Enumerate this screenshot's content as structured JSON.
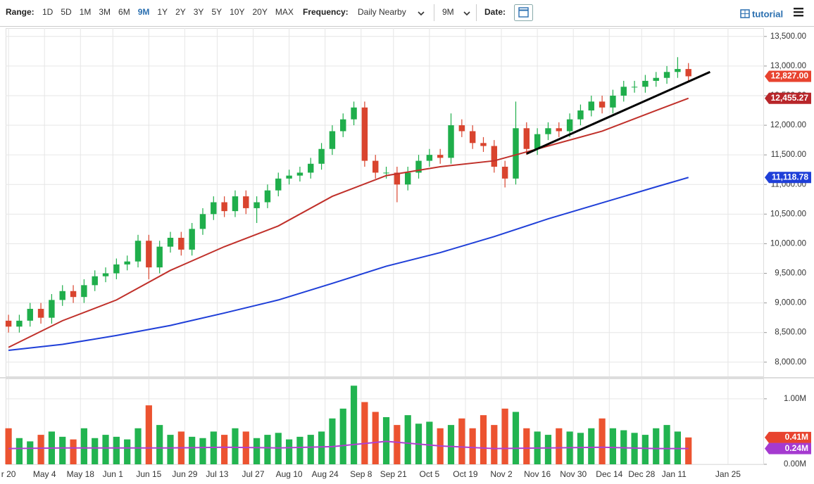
{
  "toolbar": {
    "range_label": "Range:",
    "ranges": [
      "1D",
      "5D",
      "1M",
      "3M",
      "6M",
      "9M",
      "1Y",
      "2Y",
      "3Y",
      "5Y",
      "10Y",
      "20Y",
      "MAX"
    ],
    "active_range": 5,
    "frequency_label": "Frequency:",
    "frequency": "Daily Nearby",
    "period": "9M",
    "date_label": "Date:",
    "tutorial": "tutorial"
  },
  "chart_data": [
    {
      "type": "candlestick",
      "up_color": "#1fae4b",
      "down_color": "#d9442e",
      "xlim": [
        -0.8,
        210
      ],
      "ylim": [
        7760,
        13640
      ],
      "grid": true,
      "yticks": [
        {
          "value": 8000,
          "label": "8,000.00"
        },
        {
          "value": 8500,
          "label": "8,500.00"
        },
        {
          "value": 9000,
          "label": "9,000.00"
        },
        {
          "value": 9500,
          "label": "9,500.00"
        },
        {
          "value": 10000,
          "label": "10,000.00"
        },
        {
          "value": 10500,
          "label": "10,500.00"
        },
        {
          "value": 11000,
          "label": "11,000.00"
        },
        {
          "value": 11500,
          "label": "11,500.00"
        },
        {
          "value": 12000,
          "label": "12,000.00"
        },
        {
          "value": 12500,
          "label": "12,500.00"
        },
        {
          "value": 13000,
          "label": "13,000.00"
        },
        {
          "value": 13500,
          "label": "13,500.00"
        }
      ],
      "x": [
        0,
        3,
        6,
        9,
        12,
        15,
        18,
        21,
        24,
        27,
        30,
        33,
        36,
        39,
        42,
        45,
        48,
        51,
        54,
        57,
        60,
        63,
        66,
        69,
        72,
        75,
        78,
        81,
        84,
        87,
        90,
        93,
        96,
        99,
        102,
        105,
        108,
        111,
        114,
        117,
        120,
        123,
        126,
        129,
        132,
        135,
        138,
        141,
        144,
        147,
        150,
        153,
        156,
        159,
        162,
        165,
        168,
        171,
        174,
        177,
        180,
        183,
        186,
        189
      ],
      "open": [
        8700,
        8600,
        8700,
        8900,
        8750,
        9050,
        9200,
        9100,
        9300,
        9450,
        9500,
        9650,
        9700,
        10050,
        9600,
        9950,
        10100,
        9900,
        10250,
        10500,
        10700,
        10550,
        10800,
        10600,
        10700,
        10900,
        11100,
        11150,
        11200,
        11350,
        11600,
        11900,
        12100,
        12300,
        11400,
        11200,
        11200,
        11000,
        11200,
        11400,
        11500,
        11450,
        12000,
        11900,
        11700,
        11650,
        11300,
        11100,
        11950,
        11600,
        11850,
        11950,
        11900,
        12100,
        12250,
        12400,
        12300,
        12500,
        12650,
        12650,
        12750,
        12800,
        12900,
        12950
      ],
      "high": [
        8800,
        8800,
        9000,
        9000,
        9150,
        9300,
        9300,
        9400,
        9550,
        9600,
        9750,
        9800,
        10150,
        10150,
        10050,
        10200,
        10200,
        10350,
        10600,
        10800,
        10800,
        10900,
        10900,
        10800,
        11000,
        11200,
        11250,
        11300,
        11450,
        11700,
        12000,
        12200,
        12400,
        12400,
        11500,
        11300,
        11300,
        11300,
        11500,
        11600,
        11600,
        12200,
        12100,
        12000,
        11800,
        11750,
        11400,
        12400,
        12050,
        11950,
        12050,
        12050,
        12200,
        12350,
        12500,
        12500,
        12600,
        12750,
        12750,
        12850,
        12900,
        13000,
        13150,
        13050
      ],
      "low": [
        8500,
        8500,
        8600,
        8650,
        8650,
        8950,
        9000,
        9000,
        9200,
        9350,
        9400,
        9550,
        9600,
        9400,
        9500,
        9850,
        9800,
        9800,
        10150,
        10400,
        10450,
        10450,
        10500,
        10350,
        10600,
        10800,
        11000,
        11050,
        11100,
        11250,
        11500,
        11800,
        12000,
        11300,
        11100,
        11100,
        10700,
        10900,
        11100,
        11300,
        11350,
        11350,
        11800,
        11600,
        11550,
        11200,
        10950,
        11000,
        11500,
        11500,
        11750,
        11800,
        11800,
        12000,
        12150,
        12200,
        12200,
        12400,
        12550,
        12550,
        12650,
        12700,
        12800,
        12750
      ],
      "close": [
        8600,
        8700,
        8900,
        8750,
        9050,
        9200,
        9100,
        9300,
        9450,
        9500,
        9650,
        9700,
        10050,
        9600,
        9950,
        10100,
        9900,
        10250,
        10500,
        10700,
        10550,
        10800,
        10600,
        10700,
        10900,
        11100,
        11150,
        11200,
        11350,
        11600,
        11900,
        12100,
        12300,
        11400,
        11200,
        11200,
        11000,
        11200,
        11400,
        11500,
        11450,
        12000,
        11900,
        11700,
        11650,
        11300,
        11100,
        11950,
        11600,
        11850,
        11950,
        11900,
        12100,
        12250,
        12400,
        12300,
        12500,
        12650,
        12650,
        12750,
        12800,
        12900,
        12950,
        12827
      ],
      "series": [
        {
          "color": "#c0302a",
          "x": [
            0,
            15,
            30,
            45,
            60,
            75,
            90,
            105,
            120,
            135,
            150,
            165,
            180,
            189
          ],
          "values": [
            8250,
            8700,
            9050,
            9550,
            9950,
            10300,
            10800,
            11150,
            11300,
            11400,
            11650,
            11900,
            12250,
            12455.27
          ]
        },
        {
          "color": "#1f3fd8",
          "x": [
            0,
            15,
            30,
            45,
            60,
            75,
            90,
            105,
            120,
            135,
            150,
            165,
            180,
            189
          ],
          "values": [
            8200,
            8300,
            8450,
            8620,
            8830,
            9050,
            9330,
            9620,
            9850,
            10120,
            10420,
            10690,
            10960,
            11118.78
          ]
        }
      ],
      "trendline": {
        "color": "#000000",
        "x": [
          144,
          195
        ],
        "values": [
          11520,
          12900
        ]
      },
      "markers": [
        {
          "value": 12827,
          "label": "12,827.00",
          "color": "#e8432f"
        },
        {
          "value": 12455.27,
          "label": "12,455.27",
          "color": "#b8262a"
        },
        {
          "value": 11118.78,
          "label": "11,118.78",
          "color": "#1f3fd8"
        }
      ]
    },
    {
      "type": "volume",
      "xlim": [
        -0.8,
        210
      ],
      "ylim": [
        0,
        1.31
      ],
      "grid": true,
      "yticks": [
        {
          "value": 0,
          "label": "0.00M"
        },
        {
          "value": 1,
          "label": "1.00M"
        }
      ],
      "xticks": [
        {
          "value": 0,
          "label": "r 20"
        },
        {
          "value": 10,
          "label": "May 4"
        },
        {
          "value": 20,
          "label": "May 18"
        },
        {
          "value": 29,
          "label": "Jun 1"
        },
        {
          "value": 39,
          "label": "Jun 15"
        },
        {
          "value": 49,
          "label": "Jun 29"
        },
        {
          "value": 58,
          "label": "Jul 13"
        },
        {
          "value": 68,
          "label": "Jul 27"
        },
        {
          "value": 78,
          "label": "Aug 10"
        },
        {
          "value": 88,
          "label": "Aug 24"
        },
        {
          "value": 98,
          "label": "Sep 8"
        },
        {
          "value": 107,
          "label": "Sep 21"
        },
        {
          "value": 117,
          "label": "Oct 5"
        },
        {
          "value": 127,
          "label": "Oct 19"
        },
        {
          "value": 137,
          "label": "Nov 2"
        },
        {
          "value": 147,
          "label": "Nov 16"
        },
        {
          "value": 157,
          "label": "Nov 30"
        },
        {
          "value": 167,
          "label": "Dec 14"
        },
        {
          "value": 176,
          "label": "Dec 28"
        },
        {
          "value": 185,
          "label": "Jan 11"
        },
        {
          "value": 200,
          "label": "Jan 25"
        }
      ],
      "x": [
        0,
        3,
        6,
        9,
        12,
        15,
        18,
        21,
        24,
        27,
        30,
        33,
        36,
        39,
        42,
        45,
        48,
        51,
        54,
        57,
        60,
        63,
        66,
        69,
        72,
        75,
        78,
        81,
        84,
        87,
        90,
        93,
        96,
        99,
        102,
        105,
        108,
        111,
        114,
        117,
        120,
        123,
        126,
        129,
        132,
        135,
        138,
        141,
        144,
        147,
        150,
        153,
        156,
        159,
        162,
        165,
        168,
        171,
        174,
        177,
        180,
        183,
        186,
        189
      ],
      "values": [
        0.55,
        0.4,
        0.35,
        0.45,
        0.5,
        0.42,
        0.38,
        0.55,
        0.4,
        0.45,
        0.42,
        0.38,
        0.55,
        0.9,
        0.6,
        0.45,
        0.5,
        0.42,
        0.4,
        0.5,
        0.45,
        0.55,
        0.5,
        0.4,
        0.45,
        0.48,
        0.38,
        0.42,
        0.45,
        0.5,
        0.7,
        0.85,
        1.2,
        0.95,
        0.8,
        0.72,
        0.6,
        0.75,
        0.62,
        0.65,
        0.55,
        0.6,
        0.7,
        0.55,
        0.75,
        0.6,
        0.85,
        0.8,
        0.55,
        0.5,
        0.45,
        0.55,
        0.5,
        0.48,
        0.55,
        0.7,
        0.55,
        0.52,
        0.48,
        0.45,
        0.55,
        0.6,
        0.5,
        0.41
      ],
      "up_color": "#22b450",
      "down_color": "#ec5330",
      "series": [
        {
          "color": "#b040d0",
          "x": [
            0,
            15,
            30,
            45,
            60,
            75,
            90,
            105,
            120,
            135,
            150,
            165,
            180,
            189
          ],
          "values": [
            0.24,
            0.25,
            0.25,
            0.25,
            0.26,
            0.25,
            0.27,
            0.35,
            0.28,
            0.24,
            0.25,
            0.26,
            0.24,
            0.24
          ]
        }
      ],
      "markers": [
        {
          "value": 0.41,
          "label": "0.41M",
          "color": "#e8432f"
        },
        {
          "value": 0.24,
          "label": "0.24M",
          "color": "#a53ad0"
        }
      ]
    }
  ]
}
